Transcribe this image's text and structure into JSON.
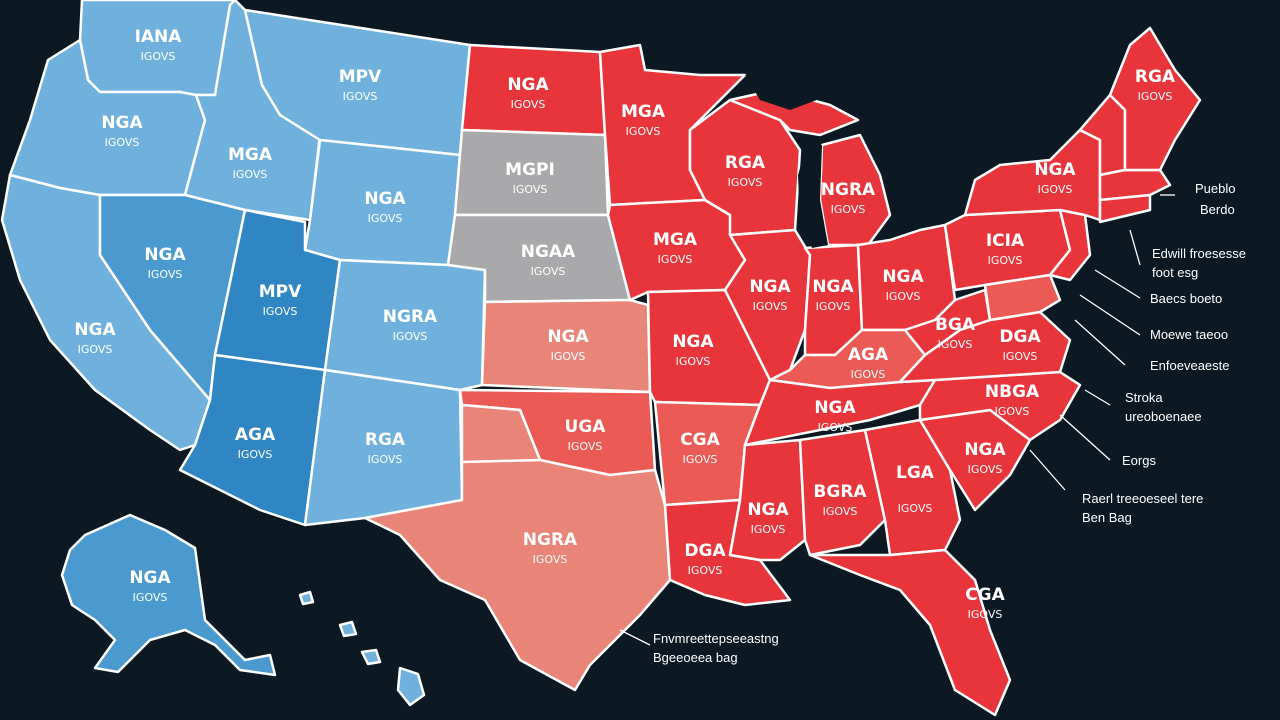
{
  "colors": {
    "background": "#0c1822",
    "blue_light": "#6fb1dc",
    "blue_mid": "#4a9acf",
    "blue_dark": "#2f86c2",
    "gray": "#a9a9ab",
    "red_light": "#e88478",
    "red_mid": "#ec5a55",
    "red_dark": "#e8353b",
    "stroke": "#ffffff"
  },
  "states": {
    "wa": {
      "l1": "IANA",
      "l2": "IGOVS"
    },
    "or": {
      "l1": "NGA",
      "l2": "IGOVS"
    },
    "ca": {
      "l1": "NGA",
      "l2": "IGOVS"
    },
    "id": {
      "l1": "MGA",
      "l2": "IGOVS"
    },
    "nv": {
      "l1": "NGA",
      "l2": "IGOVS"
    },
    "mt": {
      "l1": "MPV",
      "l2": "IGOVS"
    },
    "wy": {
      "l1": "NGA",
      "l2": "IGOVS"
    },
    "ut": {
      "l1": "MPV",
      "l2": "IGOVS"
    },
    "co": {
      "l1": "NGRA",
      "l2": "IGOVS"
    },
    "az": {
      "l1": "AGA",
      "l2": "IGOVS"
    },
    "nm": {
      "l1": "RGA",
      "l2": "IGOVS"
    },
    "nd": {
      "l1": "NGA",
      "l2": "IGOVS"
    },
    "sd": {
      "l1": "MGPI",
      "l2": "IGOVS"
    },
    "ne": {
      "l1": "NGAA",
      "l2": "IGOVS"
    },
    "ks": {
      "l1": "NGA",
      "l2": "IGOVS"
    },
    "ok": {
      "l1": "UGA",
      "l2": "IGOVS"
    },
    "tx": {
      "l1": "NGRA",
      "l2": "IGOVS"
    },
    "mn": {
      "l1": "MGA",
      "l2": "IGOVS"
    },
    "ia": {
      "l1": "MGA",
      "l2": "IGOVS"
    },
    "mo": {
      "l1": "NGA",
      "l2": "IGOVS"
    },
    "ar": {
      "l1": "CGA",
      "l2": "IGOVS"
    },
    "la": {
      "l1": "DGA",
      "l2": "IGOVS"
    },
    "wi": {
      "l1": "RGA",
      "l2": "IGOVS"
    },
    "mi": {
      "l1": "NGRA",
      "l2": "IGOVS"
    },
    "il": {
      "l1": "NGA",
      "l2": "IGOVS"
    },
    "in": {
      "l1": "NGA",
      "l2": "IGOVS"
    },
    "oh": {
      "l1": "NGA",
      "l2": "IGOVS"
    },
    "ky": {
      "l1": "AGA",
      "l2": "IGOVS"
    },
    "tn": {
      "l1": "NGA",
      "l2": "IGOVS"
    },
    "ms": {
      "l1": "NGA",
      "l2": "IGOVS"
    },
    "al": {
      "l1": "BGRA",
      "l2": "IGOVS"
    },
    "ga": {
      "l1": "LGA",
      "l2": "IGOVS"
    },
    "fl": {
      "l1": "CGA",
      "l2": "IGOVS"
    },
    "sc": {
      "l1": "NGA",
      "l2": "IGOVS"
    },
    "nc": {
      "l1": "NBGA",
      "l2": "IGOVS"
    },
    "va": {
      "l1": "DGA",
      "l2": "IGOVS"
    },
    "wv": {
      "l1": "BGA",
      "l2": "IGOVS"
    },
    "pa": {
      "l1": "ICIA",
      "l2": "IGOVS"
    },
    "ny": {
      "l1": "NGA",
      "l2": "IGOVS"
    },
    "me": {
      "l1": "RGA",
      "l2": "IGOVS"
    },
    "ak": {
      "l1": "NGA",
      "l2": "IGOVS"
    }
  },
  "callouts": [
    {
      "l1": "Pueblo",
      "l2": "Berdo"
    },
    {
      "l1": "Edwill froesesse",
      "l2": "foot esg"
    },
    {
      "l1": "Baecs boeto",
      "l2": ""
    },
    {
      "l1": "Moewe taeoo",
      "l2": ""
    },
    {
      "l1": "Enfoeveaeste",
      "l2": ""
    },
    {
      "l1": "Stroka",
      "l2": "ureoboenaee"
    },
    {
      "l1": "Eorgs",
      "l2": ""
    },
    {
      "l1": "Raerl treeoeseel tere",
      "l2": "Ben Bag"
    },
    {
      "l1": "Fnvmreettepseeastng",
      "l2": "Bgeeoeea bag"
    }
  ]
}
